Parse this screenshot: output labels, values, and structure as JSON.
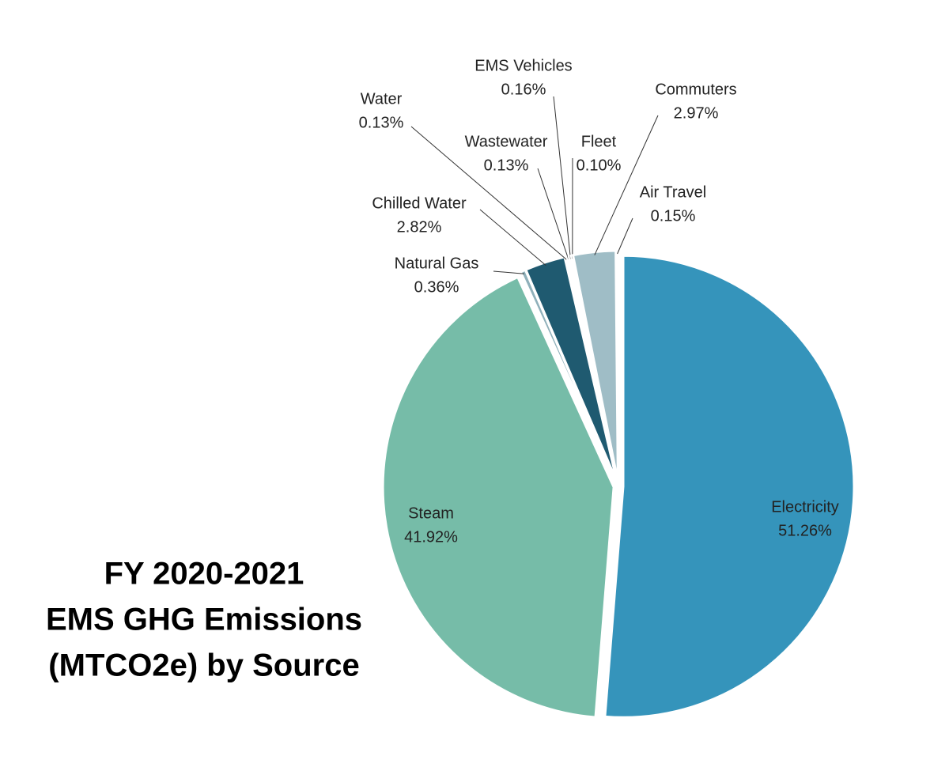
{
  "chart_data": {
    "type": "pie",
    "title": [
      "FY 2020-2021",
      "EMS GHG Emissions",
      "(MTCO2e) by Source"
    ],
    "categories": [
      "Electricity",
      "Steam",
      "Natural Gas",
      "Chilled Water",
      "Water",
      "Wastewater",
      "EMS Vehicles",
      "Fleet",
      "Commuters",
      "Air Travel"
    ],
    "values": [
      51.26,
      41.92,
      0.36,
      2.82,
      0.13,
      0.13,
      0.16,
      0.1,
      2.97,
      0.15
    ],
    "value_labels": [
      "51.26%",
      "41.92%",
      "0.36%",
      "2.82%",
      "0.13%",
      "0.13%",
      "0.16%",
      "0.10%",
      "2.97%",
      "0.15%"
    ],
    "colors": [
      "#3594bb",
      "#76bca8",
      "#8fb0ba",
      "#1f5a70",
      "#5fa8c8",
      "#4aa0b0",
      "#2d7f9a",
      "#a9d4cc",
      "#9fbdc6",
      "#1e5f78"
    ]
  }
}
